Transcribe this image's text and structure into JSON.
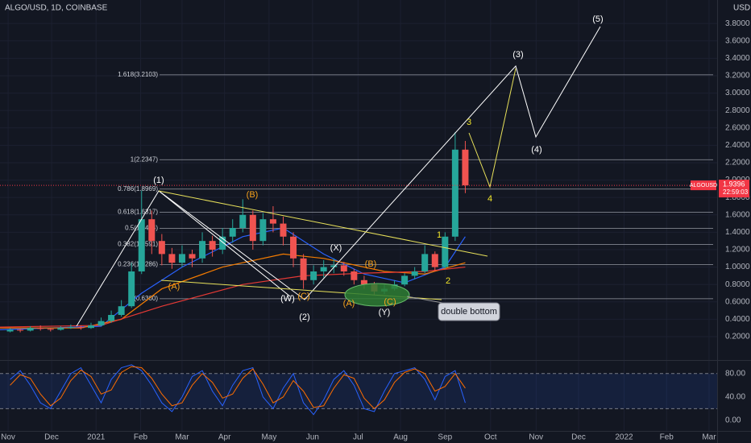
{
  "chart_data": [
    {
      "type": "candlestick",
      "title": "ALGO/USD, 1D, COINBASE",
      "currency": "USD",
      "x": [
        1,
        2,
        3,
        4,
        5,
        6,
        7,
        8,
        9,
        10,
        11,
        12,
        13,
        14,
        15,
        16,
        17,
        18,
        19,
        20,
        21,
        22,
        23,
        24,
        25,
        26,
        27,
        28,
        29,
        30,
        31,
        32,
        33,
        34,
        35,
        36,
        37,
        38,
        39,
        40,
        41,
        42,
        43,
        44,
        45,
        46
      ],
      "open": [
        0.26,
        0.28,
        0.27,
        0.3,
        0.29,
        0.28,
        0.3,
        0.31,
        0.3,
        0.33,
        0.38,
        0.45,
        0.55,
        0.95,
        1.55,
        1.3,
        1.15,
        1.05,
        1.15,
        1.1,
        1.3,
        1.2,
        1.35,
        1.45,
        1.6,
        1.3,
        1.55,
        1.5,
        1.35,
        1.1,
        0.85,
        0.95,
        1.0,
        1.02,
        0.95,
        0.85,
        0.8,
        0.72,
        0.75,
        0.8,
        0.9,
        0.95,
        1.15,
        1.0,
        1.35,
        2.35
      ],
      "high": [
        0.3,
        0.29,
        0.32,
        0.33,
        0.3,
        0.32,
        0.34,
        0.33,
        0.36,
        0.42,
        0.5,
        0.62,
        1.05,
        1.88,
        1.65,
        1.38,
        1.22,
        1.25,
        1.2,
        1.4,
        1.36,
        1.45,
        1.55,
        1.78,
        1.65,
        1.62,
        1.7,
        1.58,
        1.4,
        1.15,
        1.02,
        1.08,
        1.1,
        1.06,
        0.98,
        0.9,
        0.83,
        0.8,
        0.85,
        0.93,
        1.0,
        1.25,
        1.18,
        1.4,
        2.55,
        2.45
      ],
      "low": [
        0.25,
        0.25,
        0.26,
        0.27,
        0.26,
        0.27,
        0.29,
        0.28,
        0.29,
        0.32,
        0.36,
        0.43,
        0.53,
        0.92,
        1.15,
        1.02,
        0.98,
        1.0,
        1.0,
        1.05,
        1.12,
        1.15,
        1.28,
        1.4,
        1.2,
        1.25,
        1.4,
        1.25,
        1.0,
        0.75,
        0.8,
        0.88,
        0.93,
        0.9,
        0.8,
        0.75,
        0.68,
        0.69,
        0.73,
        0.78,
        0.86,
        0.93,
        0.95,
        0.98,
        1.3,
        1.85
      ],
      "close": [
        0.28,
        0.27,
        0.3,
        0.29,
        0.28,
        0.3,
        0.31,
        0.3,
        0.33,
        0.38,
        0.45,
        0.55,
        0.95,
        1.55,
        1.3,
        1.15,
        1.05,
        1.15,
        1.1,
        1.3,
        1.2,
        1.35,
        1.45,
        1.6,
        1.3,
        1.55,
        1.5,
        1.35,
        1.1,
        0.85,
        0.95,
        1.0,
        1.02,
        0.95,
        0.85,
        0.8,
        0.72,
        0.75,
        0.8,
        0.9,
        0.95,
        1.15,
        1.0,
        1.35,
        2.35,
        1.94
      ],
      "up_color": "#26a69a",
      "down_color": "#ef5350",
      "series": [
        {
          "color": "#2962ff",
          "x": [
            0,
            10,
            14,
            18,
            24,
            28,
            32,
            36,
            40,
            44,
            46
          ],
          "values": [
            0.28,
            0.32,
            0.7,
            1.0,
            1.35,
            1.45,
            1.15,
            0.92,
            0.82,
            1.0,
            1.35
          ]
        },
        {
          "color": "#f57c00",
          "x": [
            0,
            8,
            12,
            16,
            22,
            28,
            32,
            38,
            42,
            46
          ],
          "values": [
            0.3,
            0.3,
            0.4,
            0.75,
            1.0,
            1.15,
            1.1,
            0.95,
            0.92,
            1.05
          ]
        },
        {
          "color": "#e53935",
          "x": [
            0,
            10,
            16,
            24,
            30,
            36,
            42,
            46
          ],
          "values": [
            0.31,
            0.33,
            0.55,
            0.8,
            0.9,
            0.93,
            0.95,
            1.0
          ]
        }
      ],
      "xlim": [
        0,
        70.9
      ],
      "xticks": [
        {
          "value": 0.8,
          "label": "Nov"
        },
        {
          "value": 5.1,
          "label": "Dec"
        },
        {
          "value": 9.5,
          "label": "2021"
        },
        {
          "value": 13.9,
          "label": "Feb"
        },
        {
          "value": 18.0,
          "label": "Mar"
        },
        {
          "value": 22.2,
          "label": "Apr"
        },
        {
          "value": 26.6,
          "label": "May"
        },
        {
          "value": 30.9,
          "label": "Jun"
        },
        {
          "value": 35.4,
          "label": "Jul"
        },
        {
          "value": 39.6,
          "label": "Aug"
        },
        {
          "value": 44.0,
          "label": "Sep"
        },
        {
          "value": 48.5,
          "label": "Oct"
        },
        {
          "value": 53.0,
          "label": "Nov"
        },
        {
          "value": 57.2,
          "label": "Dec"
        },
        {
          "value": 61.7,
          "label": "2022"
        },
        {
          "value": 65.9,
          "label": "Feb"
        },
        {
          "value": 70.1,
          "label": "Mar"
        }
      ],
      "ylim": [
        -0.05,
        4.07
      ],
      "yticks": [
        {
          "value": 0.2,
          "label": "0.2000"
        },
        {
          "value": 0.4,
          "label": "0.4000"
        },
        {
          "value": 0.6,
          "label": "0.6000"
        },
        {
          "value": 0.8,
          "label": "0.8000"
        },
        {
          "value": 1.0,
          "label": "1.0000"
        },
        {
          "value": 1.2,
          "label": "1.2000"
        },
        {
          "value": 1.4,
          "label": "1.4000"
        },
        {
          "value": 1.6,
          "label": "1.6000"
        },
        {
          "value": 1.8,
          "label": "1.8000"
        },
        {
          "value": 2.0,
          "label": "2.0000"
        },
        {
          "value": 2.2,
          "label": "2.2000"
        },
        {
          "value": 2.4,
          "label": "2.4000"
        },
        {
          "value": 2.6,
          "label": "2.6000"
        },
        {
          "value": 2.8,
          "label": "2.8000"
        },
        {
          "value": 3.0,
          "label": "3.0000"
        },
        {
          "value": 3.2,
          "label": "3.2000"
        },
        {
          "value": 3.4,
          "label": "3.4000"
        },
        {
          "value": 3.6,
          "label": "3.6000"
        },
        {
          "value": 3.8,
          "label": "3.8000"
        }
      ],
      "grid": true,
      "fib_levels": [
        {
          "label": "1.618(3.2103)",
          "value": 3.2103
        },
        {
          "label": "1(2.2347)",
          "value": 2.2347
        },
        {
          "label": "0.786(1.8969)",
          "value": 1.8969
        },
        {
          "label": "0.618(1.6317)",
          "value": 1.6317
        },
        {
          "label": "0.5(1.4454)",
          "value": 1.4454
        },
        {
          "label": "0.382(1.2591)",
          "value": 1.2591
        },
        {
          "label": "0.236(1.0286)",
          "value": 1.0286
        },
        {
          "label": "0(0.6360)",
          "value": 0.636
        }
      ],
      "last_price": {
        "symbol": "ALGOUSD",
        "value": 1.9396,
        "countdown": "22:59:03",
        "color": "#f23645"
      }
    },
    {
      "type": "line",
      "x": [
        1,
        2,
        3,
        4,
        5,
        6,
        7,
        8,
        9,
        10,
        11,
        12,
        13,
        14,
        15,
        16,
        17,
        18,
        19,
        20,
        21,
        22,
        23,
        24,
        25,
        26,
        27,
        28,
        29,
        30,
        31,
        32,
        33,
        34,
        35,
        36,
        37,
        38,
        39,
        40,
        41,
        42,
        43,
        44,
        45,
        46
      ],
      "series": [
        {
          "color": "#2962ff",
          "values": [
            70,
            85,
            60,
            30,
            20,
            50,
            80,
            90,
            60,
            30,
            70,
            90,
            95,
            85,
            60,
            30,
            15,
            40,
            75,
            85,
            50,
            25,
            60,
            85,
            90,
            40,
            20,
            55,
            80,
            30,
            10,
            35,
            70,
            85,
            60,
            20,
            15,
            50,
            80,
            85,
            90,
            70,
            35,
            75,
            85,
            30
          ]
        },
        {
          "color": "#ff6d00",
          "values": [
            60,
            78,
            72,
            45,
            25,
            38,
            68,
            86,
            75,
            45,
            52,
            82,
            92,
            90,
            72,
            45,
            25,
            30,
            60,
            80,
            65,
            38,
            45,
            72,
            88,
            62,
            30,
            40,
            68,
            50,
            22,
            25,
            55,
            78,
            72,
            38,
            20,
            35,
            65,
            82,
            88,
            80,
            50,
            58,
            80,
            55
          ]
        }
      ],
      "ylim": [
        -18,
        99
      ],
      "yticks": [
        {
          "value": 80,
          "label": "80.00"
        },
        {
          "value": 40,
          "label": "40.00"
        },
        {
          "value": 0,
          "label": "0.00"
        }
      ],
      "band": [
        20,
        80
      ],
      "band_color": "#2962ff"
    }
  ],
  "annotations": {
    "waves": [
      "(1)",
      "(2)",
      "(3)",
      "(4)",
      "(5)",
      "(A)",
      "(B)",
      "(C)",
      "(W)",
      "(X)",
      "(A)",
      "(B)",
      "(C)",
      "(Y)",
      "1",
      "2",
      "3",
      "4"
    ],
    "pattern": "double bottom"
  }
}
